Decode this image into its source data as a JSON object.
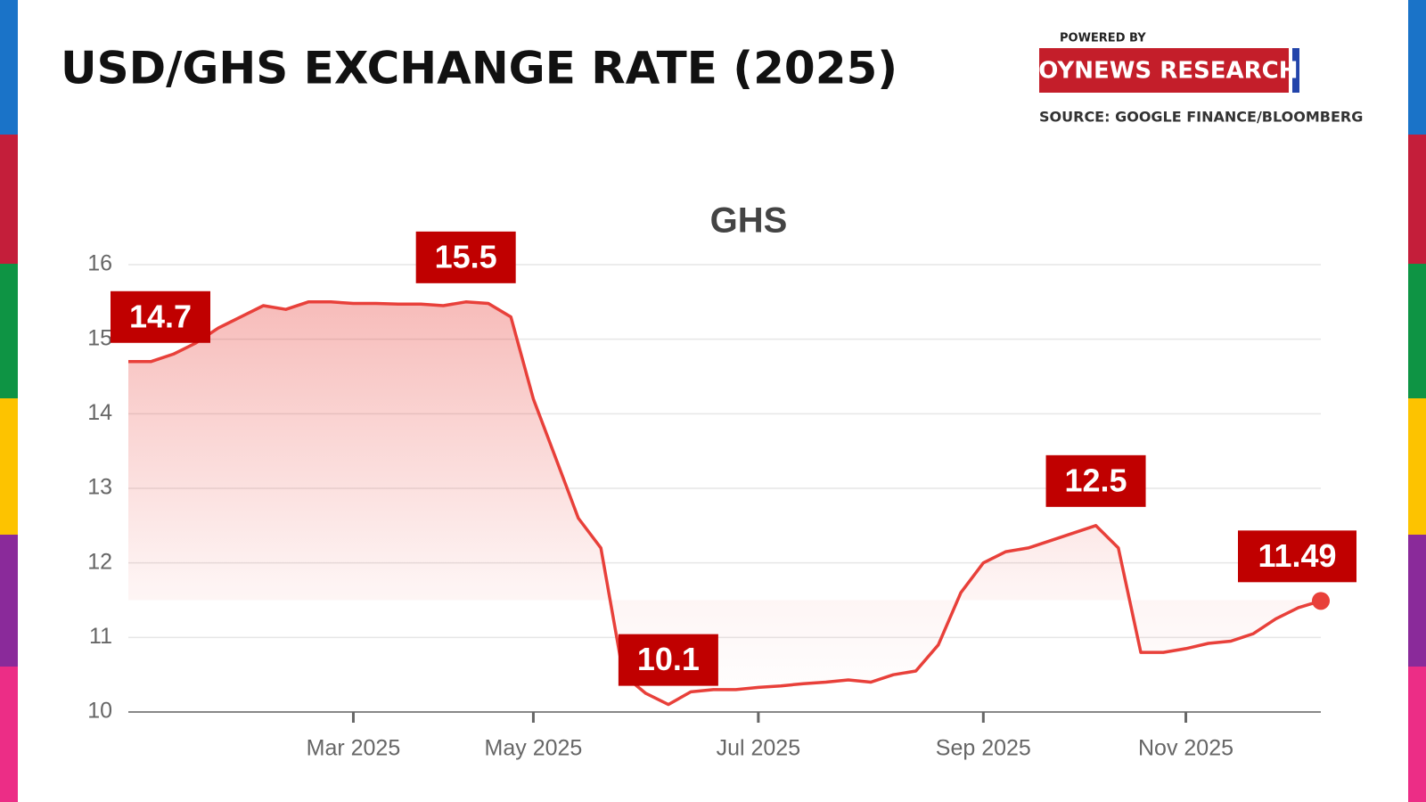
{
  "header": {
    "powered_by": "POWERED BY",
    "brand": "JOYNEWS RESEARCH",
    "source": "SOURCE: GOOGLE FINANCE/BLOOMBERG"
  },
  "chart_data": {
    "type": "line",
    "title": "USD/GHS EXCHANGE RATE (2025)",
    "categories": [
      null,
      null,
      null,
      null,
      null,
      null,
      null,
      null,
      null,
      null,
      "Mar 2025",
      null,
      null,
      null,
      null,
      null,
      null,
      null,
      "May 2025",
      null,
      null,
      null,
      null,
      null,
      null,
      null,
      null,
      null,
      "Jul 2025",
      null,
      null,
      null,
      null,
      null,
      null,
      null,
      null,
      null,
      "Sep 2025",
      null,
      null,
      null,
      null,
      null,
      null,
      null,
      null,
      "Nov 2025",
      null,
      null,
      null,
      null,
      null,
      null
    ],
    "series": [
      {
        "name": "GHS",
        "color": "#e8403a",
        "values": [
          14.7,
          14.7,
          14.8,
          14.95,
          15.15,
          15.3,
          15.45,
          15.4,
          15.5,
          15.5,
          15.48,
          15.48,
          15.47,
          15.47,
          15.45,
          15.5,
          15.48,
          15.3,
          14.2,
          13.4,
          12.6,
          12.2,
          10.5,
          10.25,
          10.1,
          10.27,
          10.3,
          10.3,
          10.33,
          10.35,
          10.38,
          10.4,
          10.43,
          10.4,
          10.5,
          10.55,
          10.9,
          11.6,
          12.0,
          12.15,
          12.2,
          12.3,
          12.4,
          12.5,
          12.2,
          10.8,
          10.8,
          10.85,
          10.92,
          10.95,
          11.05,
          11.25,
          11.4,
          11.49
        ],
        "value_labels": [
          "14.7",
          null,
          null,
          null,
          null,
          null,
          null,
          null,
          null,
          null,
          null,
          null,
          null,
          null,
          null,
          "15.5",
          null,
          null,
          null,
          null,
          null,
          null,
          null,
          null,
          "10.1",
          null,
          null,
          null,
          null,
          null,
          null,
          null,
          null,
          null,
          null,
          null,
          null,
          null,
          null,
          null,
          null,
          null,
          null,
          "12.5",
          null,
          null,
          null,
          null,
          null,
          null,
          null,
          null,
          null,
          "11.49"
        ]
      }
    ],
    "label_color": "#c00000",
    "ylim": [
      10,
      16
    ],
    "yticks": [
      10,
      11,
      12,
      13,
      14,
      15,
      16
    ],
    "grid": true
  }
}
